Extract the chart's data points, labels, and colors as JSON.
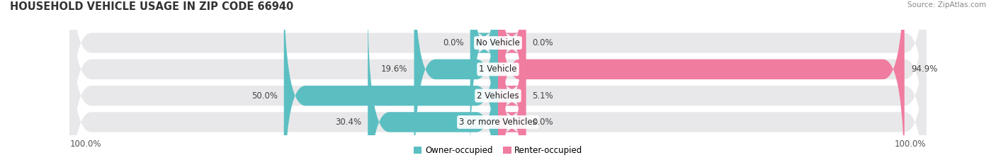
{
  "title": "HOUSEHOLD VEHICLE USAGE IN ZIP CODE 66940",
  "source": "Source: ZipAtlas.com",
  "categories": [
    "No Vehicle",
    "1 Vehicle",
    "2 Vehicles",
    "3 or more Vehicles"
  ],
  "owner_values": [
    0.0,
    19.6,
    50.0,
    30.4
  ],
  "renter_values": [
    0.0,
    94.9,
    5.1,
    0.0
  ],
  "owner_color": "#5bbfc2",
  "renter_color": "#f07ca0",
  "owner_color_light": "#a8dfe0",
  "renter_color_light": "#f5b8cf",
  "bar_bg_color": "#e8e8ea",
  "row_bg_color": "#f2f2f4",
  "title_fontsize": 10.5,
  "label_fontsize": 8.5,
  "tick_fontsize": 8.5,
  "max_val": 100.0,
  "min_bar_owner": 8.0,
  "min_bar_renter": 8.0,
  "x_axis_left": "100.0%",
  "x_axis_right": "100.0%"
}
